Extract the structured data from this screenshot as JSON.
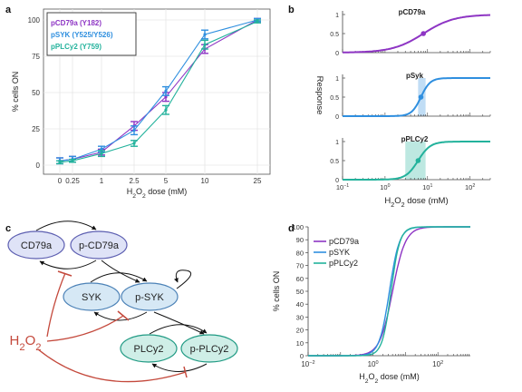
{
  "panels": {
    "a": "a",
    "b": "b",
    "c": "c",
    "d": "d"
  },
  "colors": {
    "pCD79a": "#8e35c4",
    "pSYK": "#2f8fdf",
    "pPLCy2": "#23b29c",
    "inhibit": "#c4493c",
    "node_blue_fill": "#dfe3f7",
    "node_blue_stroke": "#5d5fb1",
    "node_light_fill": "#d6e8f5",
    "node_light_stroke": "#4c82b7",
    "node_teal_fill": "#cfeee7",
    "node_teal_stroke": "#1f9a83"
  },
  "chart_data": [
    {
      "panel": "a",
      "type": "line",
      "xlabel": "H2O2 dose (mM)",
      "ylabel": "% cells ON",
      "categories": [
        "0",
        "0.25",
        "1",
        "2.5",
        "5",
        "10",
        "25"
      ],
      "yticks": [
        "0",
        "25",
        "50",
        "75",
        "100"
      ],
      "ylim": [
        0,
        100
      ],
      "grid": true,
      "legend_position": "top-left",
      "series": [
        {
          "name": "pCD79a (Y182)",
          "color": "#8e35c4",
          "values": [
            3,
            4,
            9,
            27,
            47,
            80,
            100
          ],
          "errors": [
            2,
            2,
            2,
            3,
            3,
            3,
            1
          ]
        },
        {
          "name": "pSYK (Y525/Y526)",
          "color": "#2f8fdf",
          "values": [
            3,
            4,
            11,
            24,
            51,
            90,
            100
          ],
          "errors": [
            2,
            2,
            2,
            3,
            3,
            3,
            1
          ]
        },
        {
          "name": "pPLCy2 (Y759)",
          "color": "#23b29c",
          "values": [
            2,
            3,
            8,
            15,
            38,
            83,
            99
          ],
          "errors": [
            1,
            1,
            2,
            2,
            3,
            3,
            1
          ]
        }
      ]
    },
    {
      "panel": "b",
      "type": "line",
      "xlabel": "H2O2 dose (mM)",
      "ylabel": "Response",
      "xscale": "log",
      "xlim": [
        0.1,
        300
      ],
      "xticks": [
        "10^-1",
        "10^0",
        "10^1",
        "10^2"
      ],
      "ylim": [
        0,
        1
      ],
      "yticks": [
        "0",
        "0.5",
        "1"
      ],
      "subplots": [
        {
          "title": "pCD79a",
          "color": "#8e35c4",
          "ec50": 8,
          "hill": 1.2,
          "band": null
        },
        {
          "title": "pSyk",
          "color": "#2f8fdf",
          "ec50": 7,
          "hill": 4,
          "band": [
            6,
            9
          ]
        },
        {
          "title": "pPLCy2",
          "color": "#23b29c",
          "ec50": 6,
          "hill": 3,
          "band": [
            3,
            9
          ]
        }
      ]
    },
    {
      "panel": "d",
      "type": "line",
      "xlabel": "H2O2 dose (mM)",
      "ylabel": "% cells ON",
      "xscale": "log",
      "xlim": [
        0.01,
        1000
      ],
      "xticks": [
        "10^-2",
        "10^0",
        "10^2"
      ],
      "ylim": [
        0,
        100
      ],
      "yticks": [
        "0",
        "10",
        "20",
        "30",
        "40",
        "50",
        "60",
        "70",
        "80",
        "90",
        "100"
      ],
      "legend_position": "top-left",
      "series": [
        {
          "name": "pCD79a",
          "color": "#8e35c4",
          "ec50": 4,
          "hill": 2.2
        },
        {
          "name": "pSYK",
          "color": "#2f8fdf",
          "ec50": 3.2,
          "hill": 2.8
        },
        {
          "name": "pPLCy2",
          "color": "#23b29c",
          "ec50": 3.6,
          "hill": 3.2
        }
      ]
    }
  ],
  "diagram": {
    "nodes": [
      {
        "id": "cd79a",
        "label": "CD79a"
      },
      {
        "id": "pcd79a",
        "label": "p-CD79a"
      },
      {
        "id": "syk",
        "label": "SYK"
      },
      {
        "id": "psyk",
        "label": "p-SYK"
      },
      {
        "id": "plcy2",
        "label": "PLCy2"
      },
      {
        "id": "pplcy2",
        "label": "p-PLCy2"
      }
    ],
    "h2o2_label": "H2O2"
  }
}
